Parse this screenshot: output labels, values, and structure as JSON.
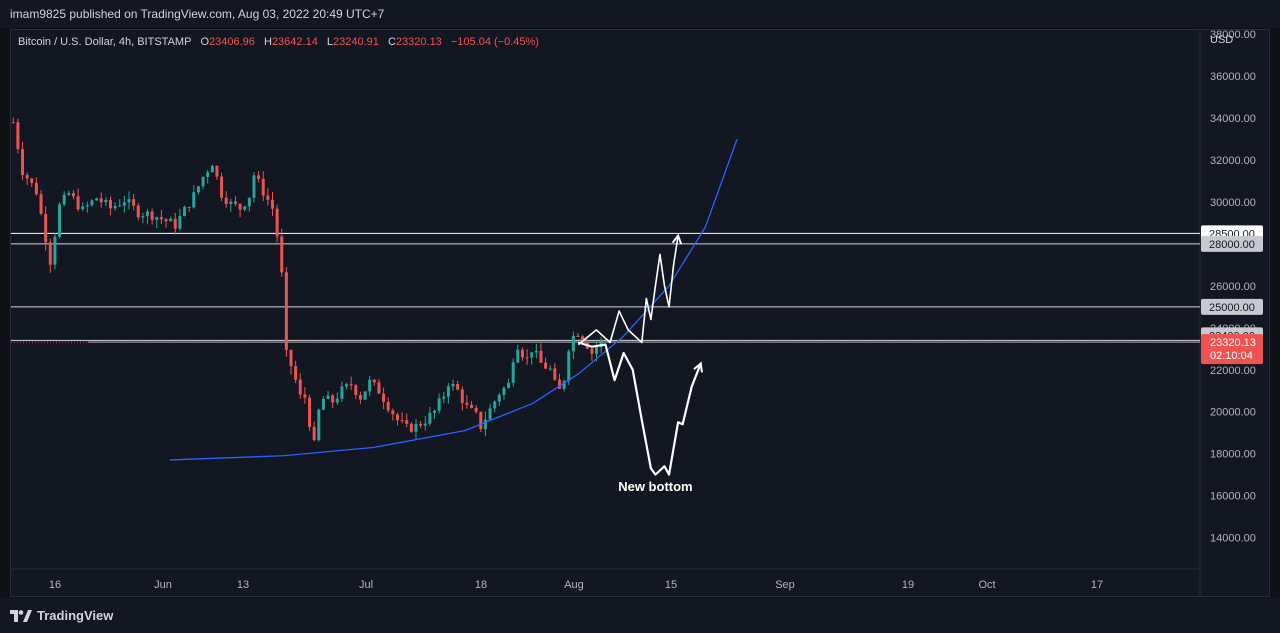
{
  "header": {
    "published_by": "imam9825 published on TradingView.com, Aug 03, 2022 20:49 UTC+7"
  },
  "legend": {
    "symbol": "Bitcoin / U.S. Dollar, 4h, BITSTAMP",
    "open_label": "O",
    "open": "23406.96",
    "high_label": "H",
    "high": "23642.14",
    "low_label": "L",
    "low": "23240.91",
    "close_label": "C",
    "close": "23320.13",
    "change": "−105.04 (−0.45%)"
  },
  "footer": {
    "brand": "TradingView",
    "logo_icon": "tradingview-logo-icon"
  },
  "chart_data": {
    "type": "candlestick",
    "currency_label": "USD",
    "y_ticks": [
      14000,
      16000,
      18000,
      20000,
      22000,
      24000,
      26000,
      28000,
      30000,
      32000,
      34000,
      36000,
      38000
    ],
    "x_ticks": [
      "16",
      "Jun",
      "13",
      "Jul",
      "18",
      "Aug",
      "15",
      "Sep",
      "19",
      "Oct",
      "17"
    ],
    "ylim": [
      12500,
      38200
    ],
    "colors": {
      "up": "#26a69a",
      "down": "#ef5350",
      "background": "#131722",
      "curve": "#2962ff",
      "drawing": "#ffffff"
    },
    "price_path": [
      [
        0,
        33800
      ],
      [
        2,
        31500
      ],
      [
        5,
        30500
      ],
      [
        8,
        27200
      ],
      [
        10,
        29800
      ],
      [
        12,
        30400
      ],
      [
        15,
        29600
      ],
      [
        18,
        30200
      ],
      [
        21,
        29700
      ],
      [
        24,
        30100
      ],
      [
        27,
        29500
      ],
      [
        30,
        29400
      ],
      [
        33,
        29100
      ],
      [
        35,
        28900
      ],
      [
        37,
        29600
      ],
      [
        39,
        30300
      ],
      [
        41,
        31200
      ],
      [
        43,
        31900
      ],
      [
        45,
        30400
      ],
      [
        47,
        29900
      ],
      [
        49,
        29700
      ],
      [
        51,
        30300
      ],
      [
        52,
        31300
      ],
      [
        54,
        30500
      ],
      [
        56,
        29700
      ],
      [
        57,
        28400
      ],
      [
        58,
        26500
      ],
      [
        59,
        22700
      ],
      [
        60,
        22200
      ],
      [
        61,
        21500
      ],
      [
        62,
        20700
      ],
      [
        63,
        20700
      ],
      [
        64,
        19500
      ],
      [
        65,
        18400
      ],
      [
        66,
        20000
      ],
      [
        67,
        20600
      ],
      [
        69,
        20500
      ],
      [
        71,
        21000
      ],
      [
        73,
        21300
      ],
      [
        75,
        20700
      ],
      [
        77,
        21400
      ],
      [
        79,
        21000
      ],
      [
        81,
        20300
      ],
      [
        83,
        19600
      ],
      [
        85,
        19200
      ],
      [
        87,
        19300
      ],
      [
        89,
        19600
      ],
      [
        91,
        20000
      ],
      [
        93,
        20800
      ],
      [
        94,
        21400
      ],
      [
        96,
        21000
      ],
      [
        98,
        20200
      ],
      [
        100,
        19800
      ],
      [
        101,
        19300
      ],
      [
        103,
        20100
      ],
      [
        105,
        20900
      ],
      [
        107,
        21300
      ],
      [
        108,
        22600
      ],
      [
        109,
        23200
      ],
      [
        110,
        22800
      ],
      [
        111,
        22500
      ],
      [
        112,
        23000
      ],
      [
        114,
        22300
      ],
      [
        116,
        22000
      ],
      [
        117,
        21300
      ],
      [
        118,
        21000
      ],
      [
        119,
        21600
      ],
      [
        120,
        23100
      ],
      [
        121,
        23600
      ],
      [
        122,
        23800
      ],
      [
        123,
        23500
      ],
      [
        124,
        23200
      ],
      [
        125,
        22800
      ],
      [
        126,
        23100
      ],
      [
        127,
        23320
      ]
    ],
    "horizontal_levels": [
      {
        "price": 28500,
        "label": "28500.00",
        "style": "white"
      },
      {
        "price": 28000,
        "label": "28000.00",
        "style": "gray"
      },
      {
        "price": 25000,
        "label": "25000.00",
        "style": "gray"
      },
      {
        "price": 23400,
        "label": "23400.00",
        "style": "gray"
      },
      {
        "price": 23320.13,
        "label": "23320.13",
        "sub": "02:10:04",
        "style": "last"
      }
    ],
    "blue_curve": [
      [
        35,
        17700
      ],
      [
        60,
        17900
      ],
      [
        80,
        18300
      ],
      [
        100,
        19100
      ],
      [
        115,
        20400
      ],
      [
        125,
        21800
      ],
      [
        135,
        23600
      ],
      [
        145,
        26000
      ],
      [
        153,
        28800
      ],
      [
        160,
        33000
      ]
    ],
    "scenario_up": [
      [
        125,
        23200
      ],
      [
        129,
        23900
      ],
      [
        132,
        23300
      ],
      [
        134,
        24800
      ],
      [
        136,
        23900
      ],
      [
        139,
        23300
      ],
      [
        140,
        25400
      ],
      [
        141,
        24400
      ],
      [
        142,
        26000
      ],
      [
        143,
        27500
      ],
      [
        144,
        26000
      ],
      [
        145,
        25000
      ],
      [
        146,
        27000
      ],
      [
        147,
        28400
      ]
    ],
    "scenario_down": [
      [
        125,
        23300
      ],
      [
        128,
        23100
      ],
      [
        131,
        23200
      ],
      [
        133,
        21500
      ],
      [
        135,
        22800
      ],
      [
        137,
        22000
      ],
      [
        139,
        19600
      ],
      [
        141,
        17300
      ],
      [
        142,
        17000
      ],
      [
        144,
        17400
      ],
      [
        145,
        17000
      ],
      [
        147,
        19500
      ],
      [
        148,
        19400
      ],
      [
        150,
        21200
      ],
      [
        152,
        22300
      ]
    ],
    "annotation": "New bottom"
  }
}
